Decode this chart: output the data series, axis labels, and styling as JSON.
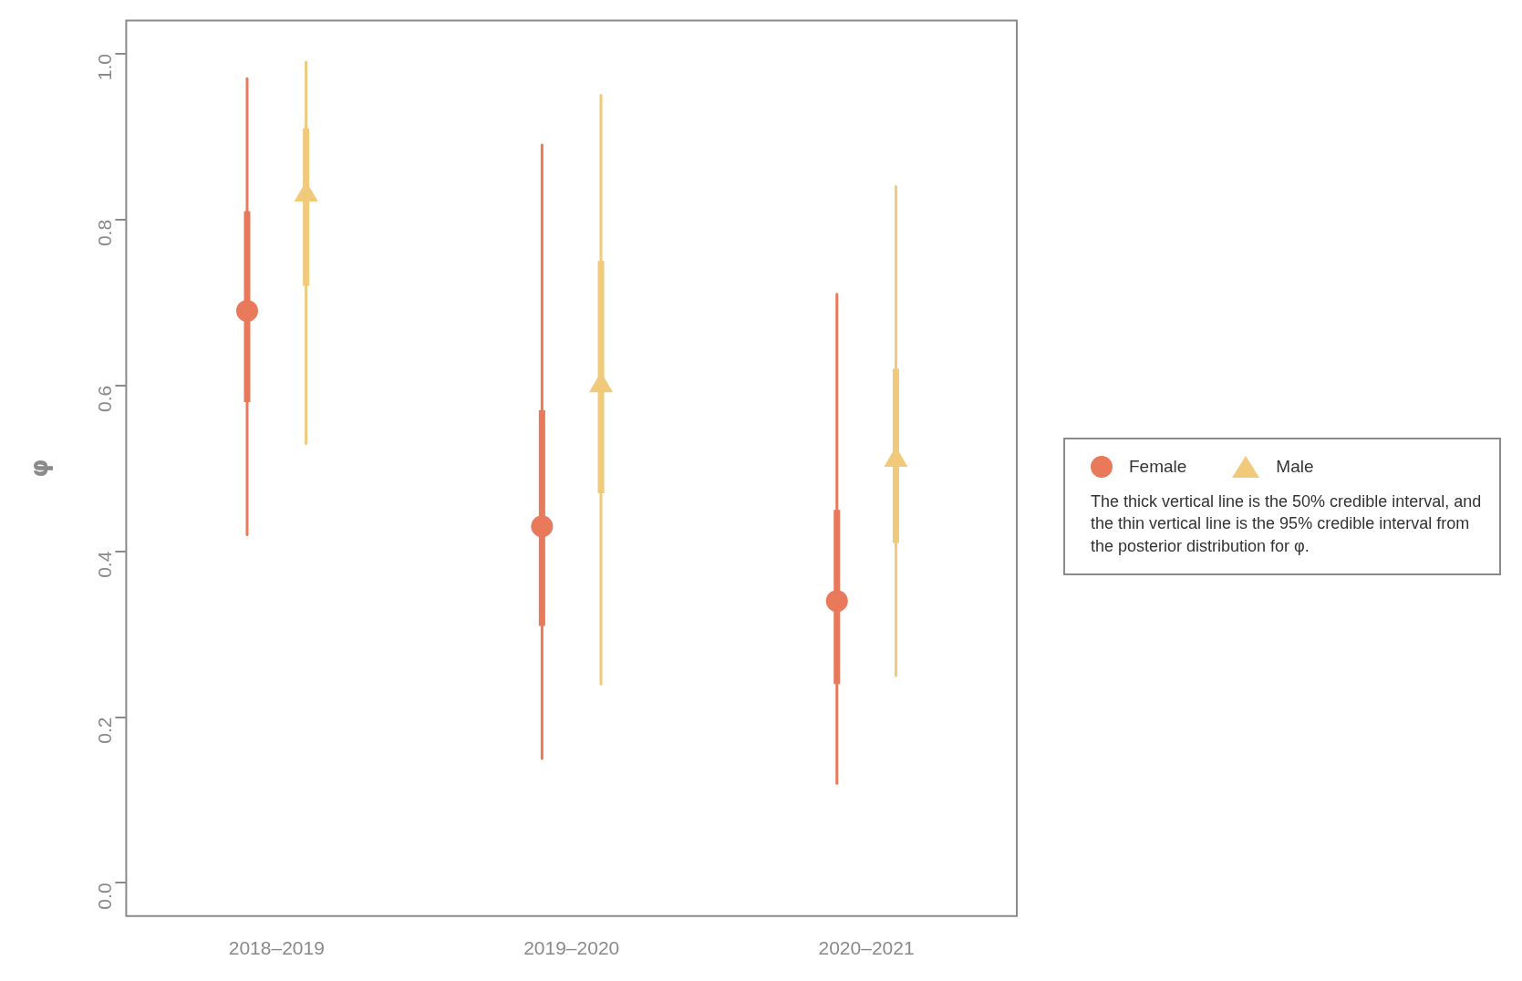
{
  "chart_data": {
    "type": "box",
    "categories": [
      "2018–2019",
      "2019–2020",
      "2020–2021"
    ],
    "ylabel": "φ",
    "ylim": [
      -0.04,
      1.04
    ],
    "yticks": [
      {
        "value": 0,
        "label": "0.0"
      },
      {
        "value": 0.2,
        "label": "0.2"
      },
      {
        "value": 0.4,
        "label": "0.4"
      },
      {
        "value": 0.6,
        "label": "0.6"
      },
      {
        "value": 0.8,
        "label": "0.8"
      },
      {
        "value": 1,
        "label": "1.0"
      }
    ],
    "grid": false,
    "legend": "right",
    "annotations": [
      "The thick vertical line is the 50% credible interval, and the thin vertical line is the 95% credible interval from the posterior distribution for φ."
    ],
    "series": [
      {
        "name": "Female",
        "color": "#e8795a",
        "marker": "circle",
        "boxes": [
          {
            "low": 0.42,
            "q1": 0.58,
            "median": 0.69,
            "q3": 0.81,
            "high": 0.97
          },
          {
            "low": 0.15,
            "q1": 0.31,
            "median": 0.43,
            "q3": 0.57,
            "high": 0.89
          },
          {
            "low": 0.12,
            "q1": 0.24,
            "median": 0.34,
            "q3": 0.45,
            "high": 0.71
          }
        ]
      },
      {
        "name": "Male",
        "color": "#f0c97a",
        "marker": "triangle",
        "boxes": [
          {
            "low": 0.53,
            "q1": 0.72,
            "median": 0.83,
            "q3": 0.91,
            "high": 0.99
          },
          {
            "low": 0.24,
            "q1": 0.47,
            "median": 0.6,
            "q3": 0.75,
            "high": 0.95
          },
          {
            "low": 0.25,
            "q1": 0.41,
            "median": 0.51,
            "q3": 0.62,
            "high": 0.84
          }
        ]
      }
    ]
  }
}
